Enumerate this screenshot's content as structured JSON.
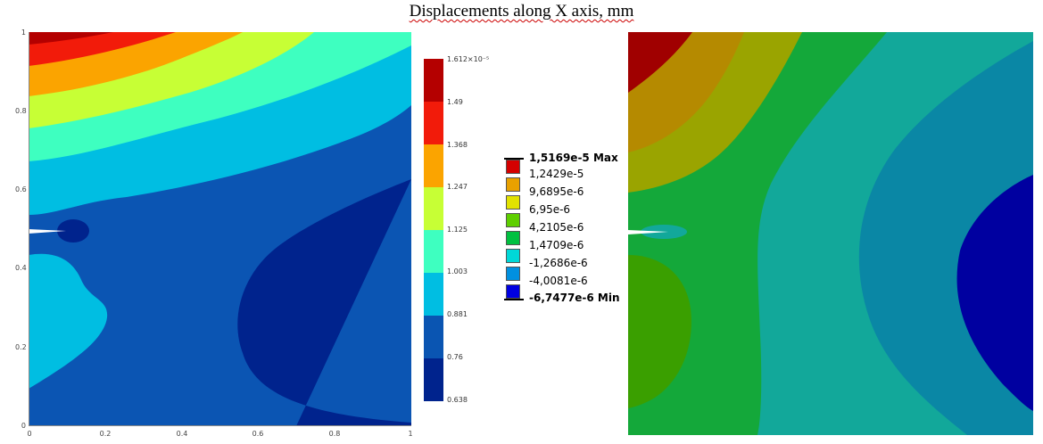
{
  "title": "Displacements along X axis, mm",
  "left_plot": {
    "y_ticks": [
      "1",
      "0.8",
      "0.6",
      "0.4",
      "0.2",
      "0"
    ],
    "x_ticks": [
      "0",
      "0.2",
      "0.4",
      "0.6",
      "0.8",
      "1"
    ],
    "colorbar_labels": [
      "1.612×10⁻⁵",
      "1.49",
      "1.368",
      "1.247",
      "1.125",
      "1.003",
      "0.881",
      "0.76",
      "0.638"
    ],
    "colors": [
      "#b40000",
      "#f21b0a",
      "#fba400",
      "#c7ff35",
      "#3effc0",
      "#00bee2",
      "#0a55b2",
      "#00238d"
    ]
  },
  "right_plot": {
    "legend": [
      {
        "label": "1,5169e-5 Max",
        "bold": true
      },
      {
        "label": "1,2429e-5",
        "color": "#d40000"
      },
      {
        "label": "9,6895e-6",
        "color": "#e8a100"
      },
      {
        "label": "6,95e-6",
        "color": "#e2e200"
      },
      {
        "label": "4,2105e-6",
        "color": "#5ecf00"
      },
      {
        "label": "1,4709e-6",
        "color": "#00c040"
      },
      {
        "label": "-1,2686e-6",
        "color": "#00d8d8"
      },
      {
        "label": "-4,0081e-6",
        "color": "#0090e0"
      },
      {
        "label": "-6,7477e-6 Min",
        "bold": true,
        "color": "#0000e0"
      }
    ],
    "colors": [
      "#a00000",
      "#b58a00",
      "#9aa400",
      "#3a9f00",
      "#14a83a",
      "#12a89a",
      "#0a87a5",
      "#0000a0"
    ]
  }
}
